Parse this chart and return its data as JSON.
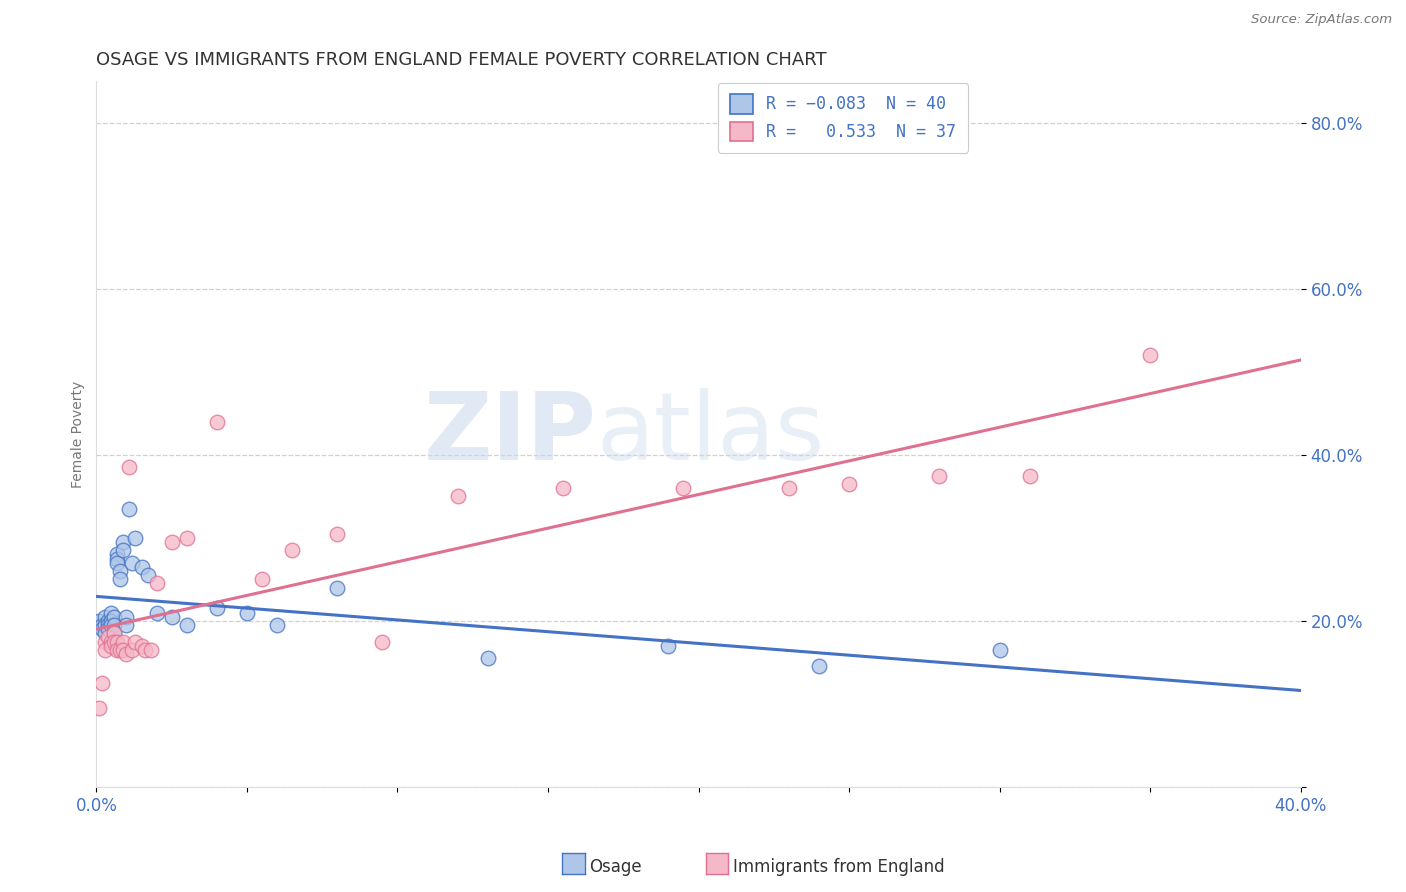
{
  "title": "OSAGE VS IMMIGRANTS FROM ENGLAND FEMALE POVERTY CORRELATION CHART",
  "source": "Source: ZipAtlas.com",
  "ylabel": "Female Poverty",
  "osage_color": "#aec6e8",
  "england_color": "#f5b8c8",
  "osage_edge_color": "#4472c4",
  "england_edge_color": "#e07090",
  "osage_line_color": "#4472c4",
  "england_line_color": "#e07090",
  "tick_color": "#4472c4",
  "title_color": "#333333",
  "ylabel_color": "#777777",
  "xlim": [
    0.0,
    0.4
  ],
  "ylim": [
    0.0,
    0.85
  ],
  "xticks": [
    0.0,
    0.05,
    0.1,
    0.15,
    0.2,
    0.25,
    0.3,
    0.35,
    0.4
  ],
  "xticklabels": [
    "0.0%",
    "",
    "",
    "",
    "",
    "",
    "",
    "",
    "40.0%"
  ],
  "ytick_vals": [
    0.0,
    0.2,
    0.4,
    0.6,
    0.8
  ],
  "ytick_labels": [
    "",
    "20.0%",
    "40.0%",
    "60.0%",
    "80.0%"
  ],
  "watermark_zip": "ZIP",
  "watermark_atlas": "atlas",
  "background_color": "#ffffff",
  "grid_color": "#cccccc",
  "osage_x": [
    0.001,
    0.002,
    0.002,
    0.003,
    0.003,
    0.003,
    0.004,
    0.004,
    0.004,
    0.005,
    0.005,
    0.005,
    0.006,
    0.006,
    0.006,
    0.007,
    0.007,
    0.007,
    0.008,
    0.008,
    0.009,
    0.009,
    0.01,
    0.01,
    0.011,
    0.012,
    0.013,
    0.015,
    0.017,
    0.02,
    0.025,
    0.03,
    0.04,
    0.05,
    0.06,
    0.08,
    0.13,
    0.19,
    0.24,
    0.3
  ],
  "osage_y": [
    0.2,
    0.195,
    0.19,
    0.205,
    0.195,
    0.185,
    0.2,
    0.195,
    0.19,
    0.21,
    0.2,
    0.195,
    0.205,
    0.195,
    0.185,
    0.28,
    0.275,
    0.27,
    0.26,
    0.25,
    0.295,
    0.285,
    0.205,
    0.195,
    0.335,
    0.27,
    0.3,
    0.265,
    0.255,
    0.21,
    0.205,
    0.195,
    0.215,
    0.21,
    0.195,
    0.24,
    0.155,
    0.17,
    0.145,
    0.165
  ],
  "england_x": [
    0.001,
    0.002,
    0.003,
    0.003,
    0.004,
    0.005,
    0.005,
    0.006,
    0.006,
    0.007,
    0.007,
    0.008,
    0.009,
    0.009,
    0.01,
    0.011,
    0.012,
    0.013,
    0.015,
    0.016,
    0.018,
    0.02,
    0.025,
    0.03,
    0.04,
    0.055,
    0.065,
    0.08,
    0.095,
    0.12,
    0.155,
    0.195,
    0.23,
    0.25,
    0.28,
    0.31,
    0.35
  ],
  "england_y": [
    0.095,
    0.125,
    0.175,
    0.165,
    0.18,
    0.175,
    0.17,
    0.185,
    0.175,
    0.175,
    0.165,
    0.165,
    0.175,
    0.165,
    0.16,
    0.385,
    0.165,
    0.175,
    0.17,
    0.165,
    0.165,
    0.245,
    0.295,
    0.3,
    0.44,
    0.25,
    0.285,
    0.305,
    0.175,
    0.35,
    0.36,
    0.36,
    0.36,
    0.365,
    0.375,
    0.375,
    0.52
  ],
  "legend_text": [
    [
      "R = ",
      "-0.083",
      "  N = ",
      "40"
    ],
    [
      "R = ",
      "  0.533",
      "  N = ",
      "37"
    ]
  ],
  "bottom_legend": [
    "Osage",
    "Immigrants from England"
  ]
}
